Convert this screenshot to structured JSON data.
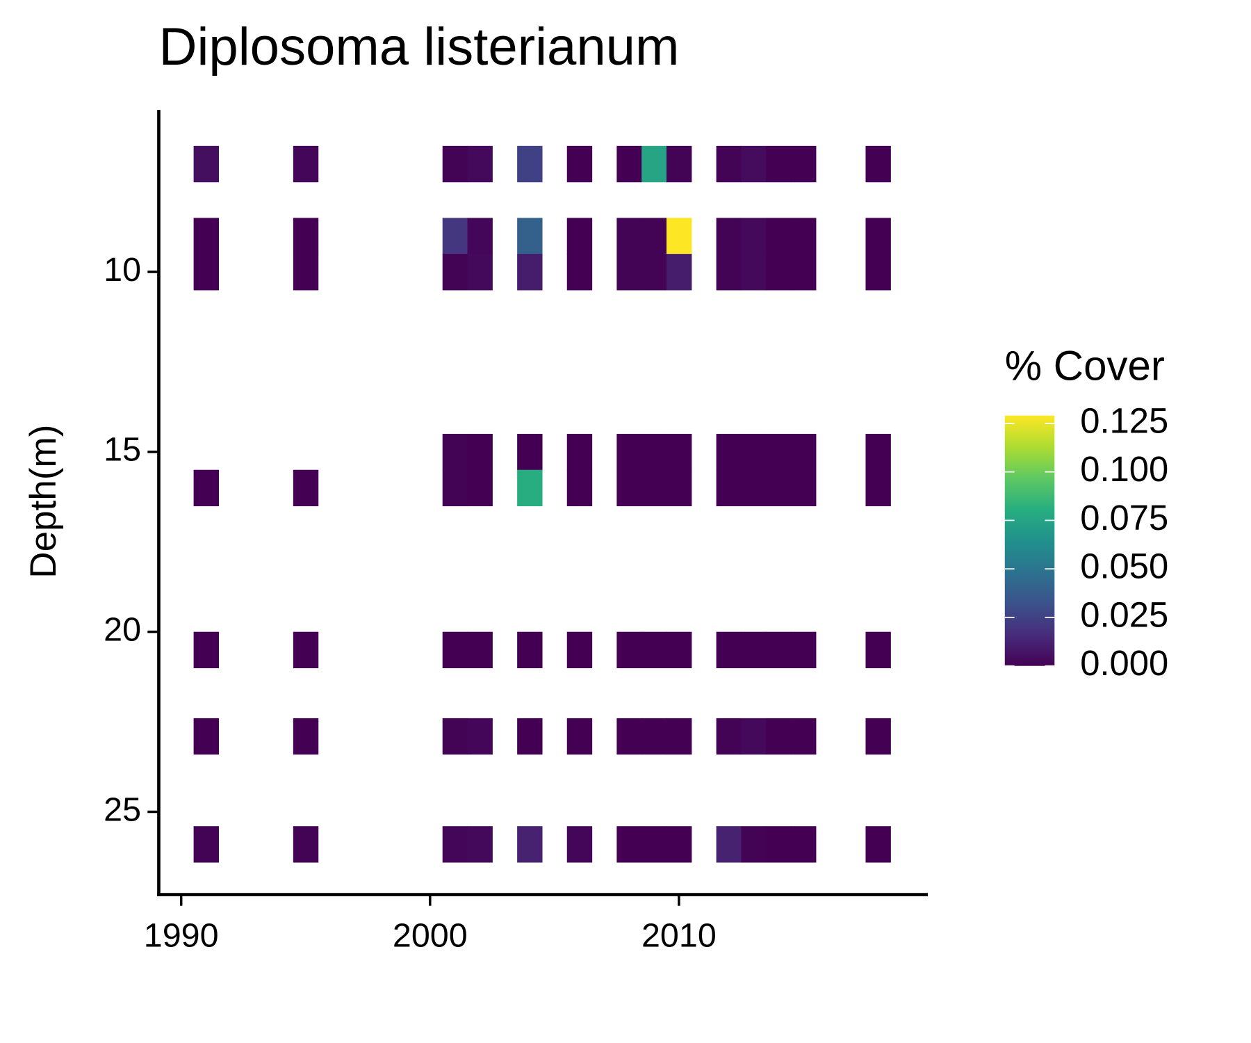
{
  "chart_data": {
    "type": "heatmap",
    "title": "Diplosoma listerianum",
    "y_label": "Depth(m)",
    "legend_title": "% Cover",
    "x": [
      1991,
      1995,
      2001,
      2002,
      2004,
      2006,
      2008,
      2009,
      2010,
      2012,
      2013,
      2014,
      2015,
      2018
    ],
    "y": [
      7,
      9,
      10,
      15,
      16,
      20.5,
      22.9,
      25.9
    ],
    "values": [
      [
        0.005,
        0.002,
        0.001,
        0.003,
        0.025,
        0,
        0,
        0.075,
        0.001,
        0.001,
        0.004,
        0,
        0,
        0
      ],
      [
        0,
        0,
        0.02,
        0.002,
        0.04,
        0,
        0.001,
        0.001,
        0.13,
        0.001,
        0.003,
        0,
        0,
        0
      ],
      [
        0,
        0,
        0.001,
        0.003,
        0.01,
        0,
        0.001,
        0.001,
        0.01,
        0.001,
        0.003,
        0,
        0,
        0
      ],
      [
        null,
        null,
        0.001,
        0,
        0,
        0,
        0,
        0,
        0,
        0,
        0,
        0,
        0,
        0
      ],
      [
        0,
        0,
        0.001,
        0,
        0.08,
        0,
        0,
        0,
        0,
        0,
        0,
        0,
        0,
        0
      ],
      [
        0,
        0,
        0,
        0,
        0,
        0,
        0,
        0,
        0,
        0,
        0,
        0,
        0,
        0
      ],
      [
        0,
        0,
        0.001,
        0.002,
        0,
        0,
        0,
        0,
        0,
        0.001,
        0.003,
        0,
        0,
        0
      ],
      [
        0.001,
        0.001,
        0.002,
        0.003,
        0.012,
        0.002,
        0,
        0,
        0,
        0.012,
        0.001,
        0,
        0,
        0
      ]
    ],
    "xlim": [
      1989.1,
      2020
    ],
    "xticks": [
      1990,
      2000,
      2010
    ],
    "ylim": [
      5.5,
      27.3
    ],
    "y_reversed": true,
    "yticks": [
      10,
      15,
      20,
      25
    ],
    "color_lim": [
      0,
      0.129
    ],
    "color_ticks": [
      {
        "value": 0,
        "label": "0.000"
      },
      {
        "value": 0.025,
        "label": "0.025"
      },
      {
        "value": 0.05,
        "label": "0.050"
      },
      {
        "value": 0.075,
        "label": "0.075"
      },
      {
        "value": 0.1,
        "label": "0.100"
      },
      {
        "value": 0.125,
        "label": "0.125"
      }
    ],
    "colorscale": [
      "#440154",
      "#472d7b",
      "#3b528b",
      "#2c728e",
      "#21918c",
      "#28ae80",
      "#5ec962",
      "#addc30",
      "#fde725"
    ]
  }
}
